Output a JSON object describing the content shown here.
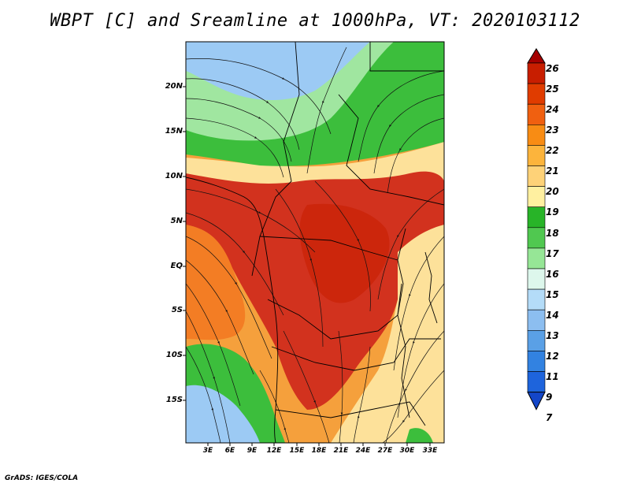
{
  "title": "WBPT [C] and Sreamline at 1000hPa, VT: 2020103112",
  "credit": "GrADS: IGES/COLA",
  "map": {
    "lat_labels": [
      "20N",
      "15N",
      "10N",
      "5N",
      "EQ",
      "5S",
      "10S",
      "15S"
    ],
    "lon_labels": [
      "3E",
      "6E",
      "9E",
      "12E",
      "15E",
      "18E",
      "21E",
      "24E",
      "27E",
      "30E",
      "33E"
    ],
    "lat_range": [
      -20,
      25
    ],
    "lon_range": [
      0,
      35
    ]
  },
  "colorbar": {
    "labels": [
      "26",
      "25",
      "24",
      "23",
      "22",
      "21",
      "20",
      "19",
      "18",
      "17",
      "16",
      "15",
      "14",
      "13",
      "12",
      "11",
      "9",
      "7"
    ],
    "colors": [
      "#a50000",
      "#c81e00",
      "#e03c00",
      "#f06010",
      "#f88c14",
      "#fcb43c",
      "#fed278",
      "#fff0a0",
      "#28b428",
      "#50c850",
      "#96e696",
      "#ddf7ec",
      "#b4dcf8",
      "#8cbef0",
      "#5aa0e6",
      "#3282e1",
      "#1e64dc",
      "#1446c8"
    ]
  },
  "colors": {
    "hot": "#d2321e",
    "orange": "#f5a03c",
    "yellow": "#fde19a",
    "green": "#3cbe3c",
    "lightgreen": "#a0e6a0",
    "blue": "#9ccaf4"
  }
}
